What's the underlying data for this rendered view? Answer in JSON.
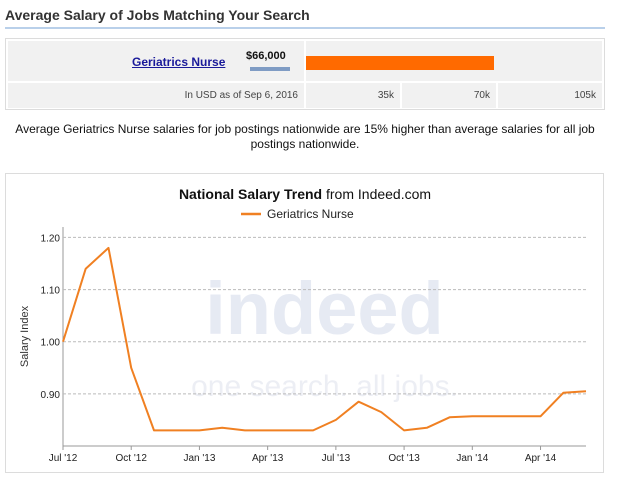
{
  "header": {
    "title": "Average Salary of Jobs Matching Your Search"
  },
  "salary": {
    "job_title": "Geriatrics Nurse",
    "amount_label": "$66,000",
    "amount_value": 66000,
    "bar_color": "#ff6a00",
    "as_of": "In USD as of Sep 6, 2016",
    "scale_ticks": [
      "35k",
      "70k",
      "105k"
    ],
    "scale_values": [
      35000,
      70000,
      105000
    ]
  },
  "description": "Average Geriatrics Nurse salaries for job postings nationwide are 15% higher than average salaries for all job postings nationwide.",
  "chart_data": {
    "type": "line",
    "title": "National Salary Trend",
    "title_suffix": "from Indeed.com",
    "ylabel": "Salary Index",
    "ylim": [
      0.8,
      1.22
    ],
    "y_ticks": [
      "0.90",
      "1.00",
      "1.10",
      "1.20"
    ],
    "y_tick_values": [
      0.9,
      1.0,
      1.1,
      1.2
    ],
    "x_ticks": [
      "Jul '12",
      "Oct '12",
      "Jan '13",
      "Apr '13",
      "Jul '13",
      "Oct '13",
      "Jan '14",
      "Apr '14"
    ],
    "x": [
      "Jul '12",
      "Aug '12",
      "Sep '12",
      "Oct '12",
      "Nov '12",
      "Dec '12",
      "Jan '13",
      "Feb '13",
      "Mar '13",
      "Apr '13",
      "May '13",
      "Jun '13",
      "Jul '13",
      "Aug '13",
      "Sep '13",
      "Oct '13",
      "Nov '13",
      "Dec '13",
      "Jan '14",
      "Feb '14",
      "Mar '14",
      "Apr '14",
      "May '14",
      "Jun '14"
    ],
    "series": [
      {
        "name": "Geriatrics Nurse",
        "color": "#f08022",
        "values": [
          1.0,
          1.14,
          1.18,
          0.95,
          0.83,
          0.83,
          0.83,
          0.835,
          0.83,
          0.83,
          0.83,
          0.83,
          0.85,
          0.885,
          0.865,
          0.83,
          0.835,
          0.855,
          0.857,
          0.857,
          0.857,
          0.857,
          0.902,
          0.905
        ]
      }
    ],
    "grid": true,
    "legend": "top-center",
    "watermark": {
      "brand": "indeed",
      "tagline": "one search. all jobs."
    }
  }
}
